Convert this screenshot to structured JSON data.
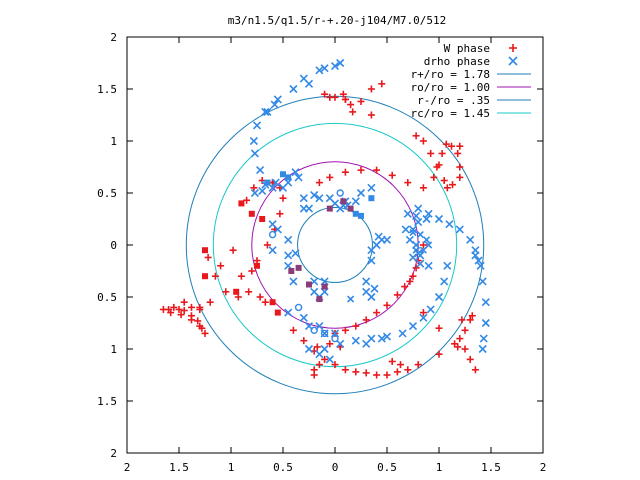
{
  "chart_data": {
    "type": "scatter",
    "title": "m3/n1.5/q1.5/r-+.20-j104/M7.0/512",
    "xlim": [
      -2,
      2
    ],
    "ylim": [
      -2,
      2
    ],
    "x_ticks": [
      {
        "value": -2,
        "label": "2"
      },
      {
        "value": -1.5,
        "label": "1.5"
      },
      {
        "value": -1,
        "label": "1"
      },
      {
        "value": -0.5,
        "label": "0.5"
      },
      {
        "value": 0,
        "label": "0"
      },
      {
        "value": 0.5,
        "label": "0.5"
      },
      {
        "value": 1,
        "label": "1"
      },
      {
        "value": 1.5,
        "label": "1.5"
      },
      {
        "value": 2,
        "label": "2"
      }
    ],
    "y_ticks": [
      {
        "value": 2,
        "label": "2"
      },
      {
        "value": 1.5,
        "label": "1.5"
      },
      {
        "value": 1,
        "label": "1"
      },
      {
        "value": 0.5,
        "label": "0.5"
      },
      {
        "value": 0,
        "label": "0"
      },
      {
        "value": -0.5,
        "label": "0.5"
      },
      {
        "value": -1,
        "label": "1"
      },
      {
        "value": -1.5,
        "label": "1.5"
      },
      {
        "value": -2,
        "label": "2"
      }
    ],
    "grid": false,
    "legend_position": "top-right",
    "legend": [
      {
        "label": "W phase",
        "marker": "+",
        "color": "#e8191d"
      },
      {
        "label": "drho phase",
        "marker": "x",
        "color": "#3389e6"
      },
      {
        "label": "r+/ro = 1.78",
        "marker": "line",
        "color": "#1f7fb8"
      },
      {
        "label": "ro/ro = 1.00",
        "marker": "line",
        "color": "#a012b0"
      },
      {
        "label": "r-/ro = .35",
        "marker": "line",
        "color": "#1f7fb8"
      },
      {
        "label": "rc/ro = 1.45",
        "marker": "line",
        "color": "#1bc8c8"
      }
    ],
    "circles": [
      {
        "name": "r+/ro = 1.78",
        "radius": 1.43,
        "color": "#1f7fb8"
      },
      {
        "name": "ro/ro = 1.00",
        "radius": 0.8,
        "color": "#a012b0"
      },
      {
        "name": "r-/ro = .35",
        "radius": 0.36,
        "color": "#1f7fb8"
      },
      {
        "name": "rc/ro = 1.45",
        "radius": 1.17,
        "color": "#1bc8c8"
      }
    ],
    "series": [
      {
        "name": "W phase",
        "color": "#e8191d",
        "points": [
          [
            -0.85,
            0.43
          ],
          [
            -0.78,
            0.55
          ],
          [
            -0.7,
            0.62
          ],
          [
            -0.6,
            0.6
          ],
          [
            -0.53,
            0.55
          ],
          [
            -0.5,
            0.45
          ],
          [
            -0.53,
            0.3
          ],
          [
            -0.58,
            0.15
          ],
          [
            -0.65,
            0.0
          ],
          [
            -0.75,
            -0.15
          ],
          [
            -0.9,
            -0.3
          ],
          [
            -1.05,
            -0.45
          ],
          [
            -1.2,
            -0.55
          ],
          [
            -1.38,
            -0.6
          ],
          [
            -1.5,
            -0.62
          ],
          [
            -1.6,
            -0.62
          ],
          [
            -1.65,
            -0.62
          ],
          [
            -1.55,
            -0.6
          ],
          [
            -1.45,
            -0.63
          ],
          [
            -1.38,
            -0.68
          ],
          [
            -1.32,
            -0.73
          ],
          [
            -1.28,
            -0.8
          ],
          [
            -1.25,
            -0.85
          ],
          [
            -1.3,
            -0.78
          ],
          [
            -1.38,
            -0.72
          ],
          [
            -1.48,
            -0.67
          ],
          [
            -1.58,
            -0.65
          ],
          [
            -0.98,
            -0.05
          ],
          [
            -0.8,
            -0.25
          ],
          [
            -0.83,
            -0.45
          ],
          [
            -0.93,
            -0.5
          ],
          [
            -1.15,
            -0.3
          ],
          [
            -1.22,
            -0.12
          ],
          [
            -1.1,
            -0.2
          ],
          [
            -1.3,
            -0.62
          ],
          [
            -0.72,
            -0.5
          ],
          [
            -0.67,
            -0.55
          ],
          [
            -0.15,
            0.6
          ],
          [
            -0.05,
            0.65
          ],
          [
            0.1,
            0.7
          ],
          [
            0.25,
            0.72
          ],
          [
            0.4,
            0.72
          ],
          [
            0.55,
            0.67
          ],
          [
            0.7,
            0.6
          ],
          [
            0.85,
            0.55
          ],
          [
            0.95,
            0.65
          ],
          [
            1.0,
            0.77
          ],
          [
            1.03,
            0.88
          ],
          [
            1.07,
            0.97
          ],
          [
            1.12,
            0.95
          ],
          [
            1.18,
            0.88
          ],
          [
            1.2,
            0.75
          ],
          [
            1.2,
            0.65
          ],
          [
            1.13,
            0.58
          ],
          [
            1.08,
            0.55
          ],
          [
            1.05,
            0.62
          ],
          [
            0.98,
            0.75
          ],
          [
            0.92,
            0.88
          ],
          [
            0.85,
            1.0
          ],
          [
            0.78,
            1.05
          ],
          [
            -0.1,
            1.45
          ],
          [
            0.0,
            1.42
          ],
          [
            0.1,
            1.4
          ],
          [
            0.15,
            1.35
          ],
          [
            0.08,
            1.45
          ],
          [
            -0.05,
            1.42
          ],
          [
            0.17,
            1.28
          ],
          [
            0.25,
            1.38
          ],
          [
            0.35,
            1.5
          ],
          [
            0.45,
            1.55
          ],
          [
            0.35,
            1.25
          ],
          [
            0.1,
            1.4
          ],
          [
            -0.4,
            -0.82
          ],
          [
            -0.3,
            -0.92
          ],
          [
            -0.2,
            -1.02
          ],
          [
            -0.1,
            -1.1
          ],
          [
            0.0,
            -1.15
          ],
          [
            0.1,
            -1.2
          ],
          [
            0.2,
            -1.22
          ],
          [
            0.3,
            -1.23
          ],
          [
            0.4,
            -1.25
          ],
          [
            0.5,
            -1.25
          ],
          [
            0.6,
            -1.22
          ],
          [
            0.7,
            -1.2
          ],
          [
            0.63,
            -1.15
          ],
          [
            0.55,
            -1.12
          ],
          [
            -0.05,
            -0.95
          ],
          [
            0.05,
            -0.98
          ],
          [
            -0.15,
            -1.15
          ],
          [
            -0.2,
            -1.2
          ],
          [
            -0.2,
            -1.25
          ],
          [
            -0.17,
            -0.98
          ],
          [
            0.0,
            -0.85
          ],
          [
            0.1,
            -0.82
          ],
          [
            0.2,
            -0.78
          ],
          [
            0.3,
            -0.72
          ],
          [
            0.4,
            -0.65
          ],
          [
            0.5,
            -0.58
          ],
          [
            0.6,
            -0.48
          ],
          [
            0.67,
            -0.4
          ],
          [
            0.75,
            -0.3
          ],
          [
            0.8,
            -0.15
          ],
          [
            0.85,
            0.0
          ],
          [
            0.78,
            -0.22
          ],
          [
            0.72,
            -0.35
          ],
          [
            0.85,
            -0.65
          ],
          [
            1.0,
            -0.8
          ],
          [
            1.15,
            -0.95
          ],
          [
            1.25,
            -0.82
          ],
          [
            1.3,
            -0.72
          ],
          [
            1.22,
            -0.72
          ],
          [
            1.32,
            -0.68
          ],
          [
            1.25,
            -1.0
          ],
          [
            1.3,
            -1.1
          ],
          [
            1.35,
            -1.2
          ],
          [
            1.18,
            -0.98
          ],
          [
            1.2,
            -0.9
          ],
          [
            1.0,
            -1.05
          ],
          [
            0.8,
            -1.15
          ],
          [
            -0.6,
            0.6
          ],
          [
            -1.3,
            -0.6
          ],
          [
            -1.45,
            -0.55
          ],
          [
            1.2,
            0.95
          ]
        ]
      },
      {
        "name": "drho phase",
        "color": "#3389e6",
        "points": [
          [
            -0.25,
            1.55
          ],
          [
            -0.4,
            1.5
          ],
          [
            -0.55,
            1.4
          ],
          [
            -0.67,
            1.28
          ],
          [
            -0.75,
            1.15
          ],
          [
            -0.78,
            1.0
          ],
          [
            -0.77,
            0.88
          ],
          [
            -0.72,
            0.72
          ],
          [
            -0.67,
            0.58
          ],
          [
            -0.6,
            0.55
          ],
          [
            -0.7,
            0.52
          ],
          [
            -0.77,
            0.5
          ],
          [
            -0.5,
            0.55
          ],
          [
            -0.57,
            0.6
          ],
          [
            -0.45,
            0.6
          ],
          [
            -0.35,
            0.65
          ],
          [
            -0.38,
            0.7
          ],
          [
            -0.3,
            1.6
          ],
          [
            -0.15,
            1.68
          ],
          [
            0.05,
            1.75
          ],
          [
            -0.1,
            1.7
          ],
          [
            0.0,
            1.72
          ],
          [
            -0.65,
            1.28
          ],
          [
            -0.58,
            1.35
          ],
          [
            0.8,
            0.35
          ],
          [
            0.9,
            0.3
          ],
          [
            1.0,
            0.25
          ],
          [
            1.1,
            0.2
          ],
          [
            1.2,
            0.15
          ],
          [
            1.3,
            0.05
          ],
          [
            1.35,
            -0.05
          ],
          [
            1.4,
            -0.2
          ],
          [
            1.42,
            -0.35
          ],
          [
            1.45,
            -0.55
          ],
          [
            1.45,
            -0.75
          ],
          [
            1.43,
            -0.9
          ],
          [
            1.42,
            -1.0
          ],
          [
            0.7,
            0.3
          ],
          [
            0.78,
            0.28
          ],
          [
            0.88,
            0.25
          ],
          [
            1.35,
            -0.1
          ],
          [
            1.38,
            -0.15
          ],
          [
            0.8,
            0.22
          ],
          [
            0.75,
            0.15
          ],
          [
            0.68,
            0.15
          ],
          [
            0.72,
            0.05
          ],
          [
            0.78,
            0.0
          ],
          [
            0.8,
            -0.08
          ],
          [
            0.75,
            -0.12
          ],
          [
            0.82,
            -0.18
          ],
          [
            -0.45,
            -0.65
          ],
          [
            -0.3,
            -0.7
          ],
          [
            -0.15,
            -0.78
          ],
          [
            0.0,
            -0.85
          ],
          [
            -0.1,
            -0.85
          ],
          [
            -0.25,
            -0.78
          ],
          [
            -0.05,
            -1.1
          ],
          [
            -0.15,
            -1.05
          ],
          [
            -0.25,
            -1.0
          ],
          [
            -0.1,
            -1.0
          ],
          [
            0.05,
            -0.95
          ],
          [
            0.2,
            -0.92
          ],
          [
            0.35,
            -0.9
          ],
          [
            0.5,
            -0.88
          ],
          [
            0.65,
            -0.85
          ],
          [
            0.75,
            -0.78
          ],
          [
            0.85,
            -0.7
          ],
          [
            0.92,
            -0.62
          ],
          [
            1.0,
            -0.5
          ],
          [
            1.05,
            -0.35
          ],
          [
            1.08,
            -0.2
          ],
          [
            0.45,
            -0.9
          ],
          [
            0.3,
            -0.95
          ],
          [
            -0.6,
            0.2
          ],
          [
            -0.55,
            0.15
          ],
          [
            -0.45,
            0.05
          ],
          [
            -0.38,
            -0.08
          ],
          [
            -0.45,
            -0.1
          ],
          [
            -0.6,
            -0.05
          ],
          [
            0.35,
            0.55
          ],
          [
            0.25,
            0.5
          ],
          [
            0.2,
            0.42
          ],
          [
            0.1,
            0.42
          ],
          [
            0.05,
            0.35
          ],
          [
            0.12,
            0.38
          ],
          [
            -0.3,
            0.45
          ],
          [
            -0.3,
            0.35
          ],
          [
            -0.25,
            0.35
          ],
          [
            -0.15,
            0.45
          ],
          [
            -0.2,
            0.48
          ],
          [
            0.35,
            -0.05
          ],
          [
            0.4,
            0.0
          ],
          [
            0.45,
            0.05
          ],
          [
            0.5,
            0.05
          ],
          [
            0.42,
            0.08
          ],
          [
            0.35,
            -0.15
          ],
          [
            0.3,
            -0.35
          ],
          [
            0.3,
            -0.45
          ],
          [
            0.35,
            -0.5
          ],
          [
            0.38,
            -0.42
          ],
          [
            -0.2,
            -0.35
          ],
          [
            -0.2,
            -0.45
          ],
          [
            -0.15,
            -0.5
          ],
          [
            -0.1,
            -0.45
          ],
          [
            -0.1,
            -0.35
          ],
          [
            -0.05,
            0.45
          ],
          [
            0.0,
            0.4
          ],
          [
            0.08,
            0.38
          ],
          [
            -0.45,
            -0.2
          ],
          [
            -0.4,
            -0.35
          ],
          [
            0.82,
            -0.1
          ],
          [
            0.9,
            -0.2
          ]
        ]
      }
    ],
    "extra_markers": [
      {
        "kind": "square",
        "color": "#e8191d",
        "points": [
          [
            -0.9,
            0.4
          ],
          [
            -0.8,
            0.3
          ],
          [
            -0.7,
            0.25
          ],
          [
            -1.25,
            -0.05
          ],
          [
            -0.75,
            -0.2
          ],
          [
            -1.25,
            -0.3
          ],
          [
            -0.95,
            -0.45
          ],
          [
            -0.6,
            -0.55
          ],
          [
            -0.55,
            -0.65
          ]
        ]
      },
      {
        "kind": "square",
        "color": "#8b3d7a",
        "points": [
          [
            -0.35,
            -0.22
          ],
          [
            -0.42,
            -0.25
          ],
          [
            -0.25,
            -0.38
          ],
          [
            -0.15,
            -0.52
          ],
          [
            -0.1,
            -0.4
          ],
          [
            0.08,
            0.42
          ],
          [
            0.15,
            0.35
          ],
          [
            -0.05,
            0.35
          ]
        ]
      },
      {
        "kind": "square",
        "color": "#3389e6",
        "points": [
          [
            -0.45,
            0.65
          ],
          [
            -0.5,
            0.68
          ],
          [
            0.35,
            0.45
          ],
          [
            0.25,
            0.28
          ],
          [
            0.2,
            0.3
          ],
          [
            -0.65,
            0.6
          ]
        ]
      },
      {
        "kind": "circle",
        "color": "#3389e6",
        "points": [
          [
            -0.6,
            0.1
          ],
          [
            -0.1,
            -0.85
          ],
          [
            0.0,
            -0.9
          ],
          [
            -0.2,
            -0.82
          ],
          [
            0.05,
            0.5
          ],
          [
            -0.35,
            -0.6
          ]
        ]
      },
      {
        "kind": "cross",
        "color": "#3389e6",
        "points": [
          [
            0.82,
            0.1
          ],
          [
            0.88,
            0.05
          ],
          [
            0.9,
            0.0
          ],
          [
            0.85,
            -0.05
          ],
          [
            0.78,
            -0.05
          ],
          [
            0.15,
            -0.52
          ],
          [
            0.75,
            0.12
          ]
        ]
      }
    ]
  }
}
